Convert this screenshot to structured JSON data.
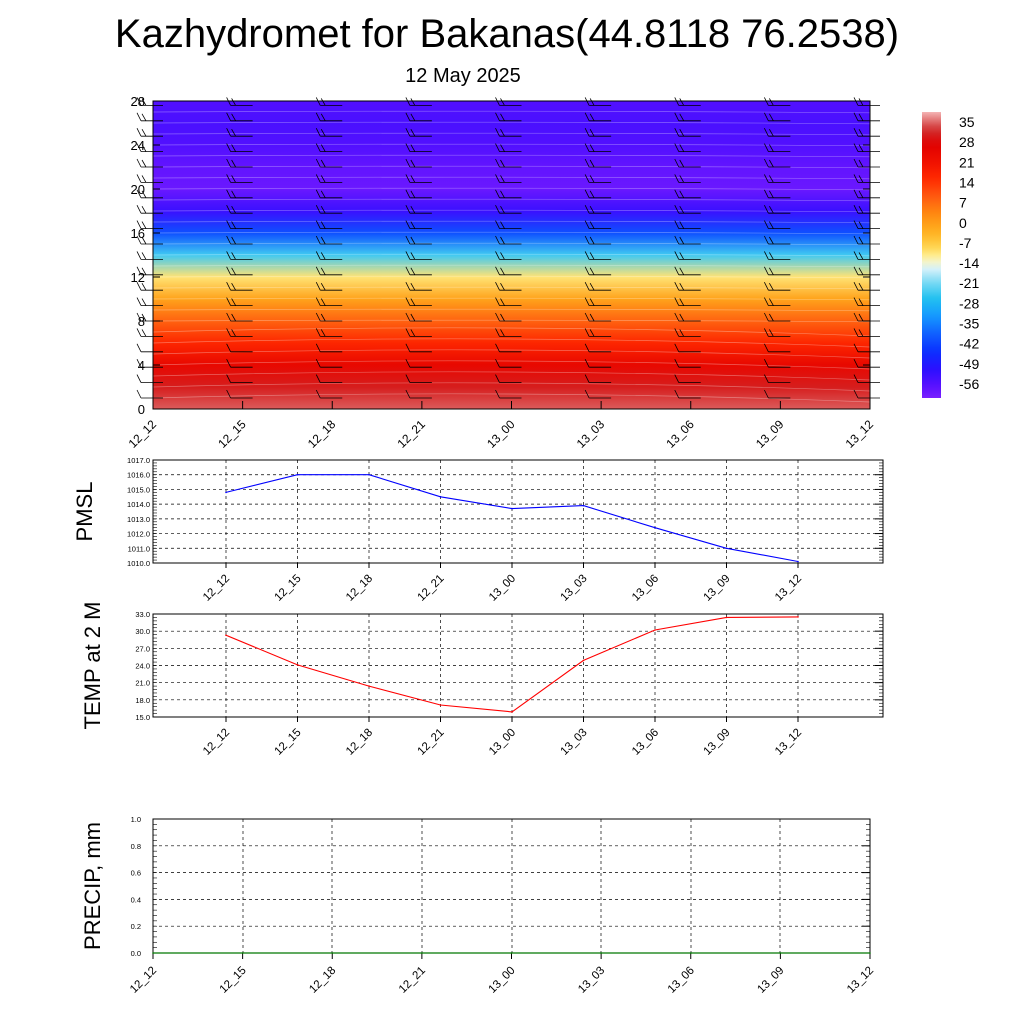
{
  "title": "Kazhydromet for Bakanas(44.8118 76.2538)",
  "subtitle": "12 May 2025",
  "chart_data": [
    {
      "type": "heatmap",
      "description_of_values": "temperature cross-section shaded by level",
      "x_categories": [
        "12_12",
        "12_15",
        "12_18",
        "12_21",
        "13_00",
        "13_03",
        "13_06",
        "13_09",
        "13_12"
      ],
      "y_ticks": [
        0,
        4,
        8,
        12,
        16,
        20,
        24,
        28
      ],
      "ylim": [
        0,
        28
      ],
      "colorbar": {
        "labels": [
          "35",
          "28",
          "21",
          "14",
          "7",
          "0",
          "-7",
          "-14",
          "-21",
          "-28",
          "-35",
          "-42",
          "-49",
          "-56"
        ],
        "range": [
          -60,
          38
        ]
      },
      "levels": [
        0,
        2,
        4,
        6,
        8,
        10,
        12,
        14,
        16,
        18,
        20,
        22,
        24,
        26,
        28
      ],
      "values_at_levels": [
        34,
        30,
        24,
        16,
        8,
        -1,
        -10,
        -24,
        -40,
        -52,
        -58,
        -57,
        -55,
        -54,
        -55
      ],
      "wind_barbs": true,
      "grid": false
    },
    {
      "type": "line",
      "ylabel": "PMSL",
      "categories": [
        "12_12",
        "12_15",
        "12_18",
        "12_21",
        "13_00",
        "13_03",
        "13_06",
        "13_09",
        "13_12"
      ],
      "values": [
        1014.8,
        1016.0,
        1016.0,
        1014.5,
        1013.7,
        1013.9,
        1012.4,
        1011.0,
        1010.1
      ],
      "ylim": [
        1010.0,
        1017.0
      ],
      "y_tick_labels": [
        "1010.0",
        "1011.0",
        "1012.0",
        "1013.0",
        "1014.0",
        "1015.0",
        "1016.0",
        "1017.0"
      ],
      "color": "#0000ff",
      "grid": true
    },
    {
      "type": "line",
      "ylabel": "TEMP at 2 M",
      "categories": [
        "12_12",
        "12_15",
        "12_18",
        "12_21",
        "13_00",
        "13_03",
        "13_06",
        "13_09",
        "13_12"
      ],
      "values": [
        29.3,
        24.1,
        20.4,
        17.1,
        15.9,
        24.9,
        30.2,
        32.4,
        32.5
      ],
      "ylim": [
        15.0,
        33.0
      ],
      "y_tick_labels": [
        "15.0",
        "18.0",
        "21.0",
        "24.0",
        "27.0",
        "30.0",
        "33.0"
      ],
      "color": "#ff0000",
      "grid": true
    },
    {
      "type": "line",
      "ylabel": "PRECIP, mm",
      "categories": [
        "12_12",
        "12_15",
        "12_18",
        "12_21",
        "13_00",
        "13_03",
        "13_06",
        "13_09",
        "13_12"
      ],
      "values": [
        0,
        0,
        0,
        0,
        0,
        0,
        0,
        0,
        0
      ],
      "ylim": [
        0.0,
        1.0
      ],
      "y_tick_labels": [
        "0.0",
        "0.2",
        "0.4",
        "0.6",
        "0.8",
        "1.0"
      ],
      "color": "#007700",
      "grid": true
    }
  ]
}
